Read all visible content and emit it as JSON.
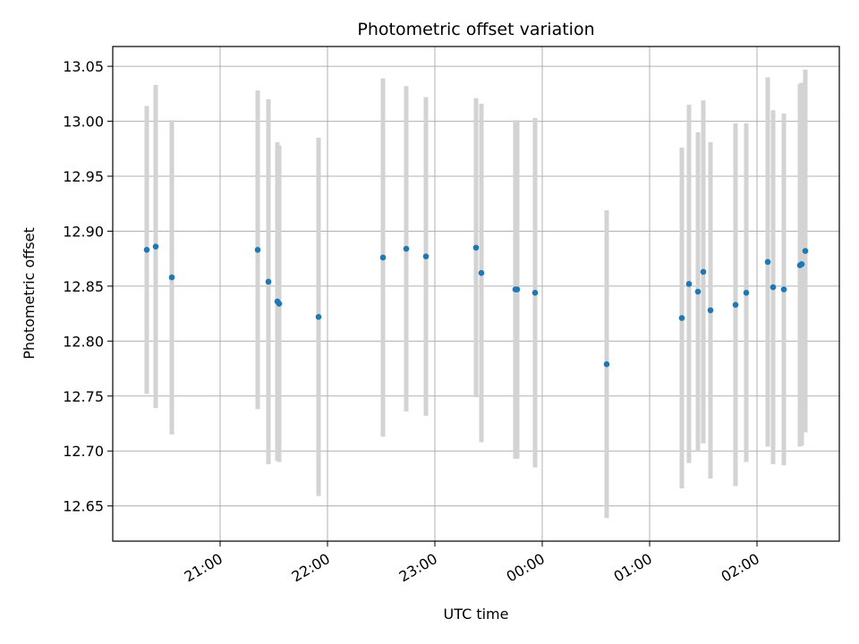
{
  "chart_data": {
    "type": "scatter",
    "title": "Photometric offset variation",
    "xlabel": "UTC time",
    "ylabel": "Photometric offset",
    "x_axis_type": "time",
    "x_start": "20:00",
    "xlim": [
      "20:00",
      "02:46"
    ],
    "ylim": [
      12.618,
      13.068
    ],
    "y_ticks": [
      12.65,
      12.7,
      12.75,
      12.8,
      12.85,
      12.9,
      12.95,
      13.0,
      13.05
    ],
    "y_tick_labels": [
      "12.65",
      "12.70",
      "12.75",
      "12.80",
      "12.85",
      "12.90",
      "12.95",
      "13.00",
      "13.05"
    ],
    "x_ticks": [
      "21:00",
      "22:00",
      "23:00",
      "00:00",
      "01:00",
      "02:00"
    ],
    "x_tick_labels": [
      "21:00",
      "22:00",
      "23:00",
      "00:00",
      "01:00",
      "02:00"
    ],
    "grid": true,
    "marker_color": "#1f77b4",
    "errorbar_color": "#d3d3d3",
    "points": [
      {
        "x": "20:19",
        "y": 12.883,
        "err": 0.131
      },
      {
        "x": "20:24",
        "y": 12.886,
        "err": 0.147
      },
      {
        "x": "20:33",
        "y": 12.858,
        "err": 0.143
      },
      {
        "x": "21:21",
        "y": 12.883,
        "err": 0.145
      },
      {
        "x": "21:27",
        "y": 12.854,
        "err": 0.166
      },
      {
        "x": "21:32",
        "y": 12.836,
        "err": 0.145
      },
      {
        "x": "21:33",
        "y": 12.834,
        "err": 0.144
      },
      {
        "x": "21:55",
        "y": 12.822,
        "err": 0.163
      },
      {
        "x": "22:31",
        "y": 12.876,
        "err": 0.163
      },
      {
        "x": "22:44",
        "y": 12.884,
        "err": 0.148
      },
      {
        "x": "22:55",
        "y": 12.877,
        "err": 0.145
      },
      {
        "x": "23:23",
        "y": 12.885,
        "err": 0.136
      },
      {
        "x": "23:26",
        "y": 12.862,
        "err": 0.154
      },
      {
        "x": "23:45",
        "y": 12.847,
        "err": 0.154
      },
      {
        "x": "23:46",
        "y": 12.847,
        "err": 0.154
      },
      {
        "x": "23:56",
        "y": 12.844,
        "err": 0.159
      },
      {
        "x": "00:36",
        "y": 12.779,
        "err": 0.14
      },
      {
        "x": "01:18",
        "y": 12.821,
        "err": 0.155
      },
      {
        "x": "01:22",
        "y": 12.852,
        "err": 0.163
      },
      {
        "x": "01:27",
        "y": 12.845,
        "err": 0.145
      },
      {
        "x": "01:30",
        "y": 12.863,
        "err": 0.156
      },
      {
        "x": "01:34",
        "y": 12.828,
        "err": 0.153
      },
      {
        "x": "01:48",
        "y": 12.833,
        "err": 0.165
      },
      {
        "x": "01:54",
        "y": 12.844,
        "err": 0.154
      },
      {
        "x": "02:06",
        "y": 12.872,
        "err": 0.168
      },
      {
        "x": "02:09",
        "y": 12.849,
        "err": 0.161
      },
      {
        "x": "02:15",
        "y": 12.847,
        "err": 0.16
      },
      {
        "x": "02:24",
        "y": 12.869,
        "err": 0.165
      },
      {
        "x": "02:25",
        "y": 12.87,
        "err": 0.165
      },
      {
        "x": "02:27",
        "y": 12.882,
        "err": 0.165
      }
    ]
  }
}
